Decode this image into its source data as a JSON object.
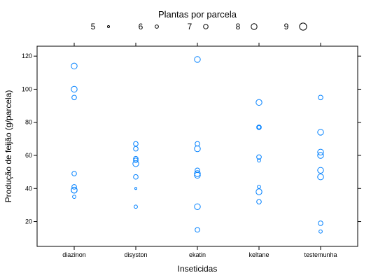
{
  "chart_data": {
    "type": "scatter",
    "legend": {
      "title": "Plantas por parcela",
      "placement": "top",
      "entries": [
        {
          "label": "5",
          "plants": 5
        },
        {
          "label": "6",
          "plants": 6
        },
        {
          "label": "7",
          "plants": 7
        },
        {
          "label": "8",
          "plants": 8
        },
        {
          "label": "9",
          "plants": 9
        }
      ]
    },
    "xlabel": "Inseticidas",
    "ylabel": "Produção de feijão (g/parcela)",
    "categories": [
      "diazinon",
      "disyston",
      "ekatin",
      "keltane",
      "testemunha"
    ],
    "yticks": [
      20,
      40,
      60,
      80,
      100,
      120
    ],
    "ytick_labels": [
      "20",
      "40",
      "60",
      "80",
      "100",
      "120"
    ],
    "ylim": [
      5,
      126
    ],
    "grid": false,
    "marker_color": "#0080ff",
    "points": [
      {
        "x": "diazinon",
        "y": 114,
        "plants": 8
      },
      {
        "x": "diazinon",
        "y": 100,
        "plants": 8
      },
      {
        "x": "diazinon",
        "y": 95,
        "plants": 7
      },
      {
        "x": "diazinon",
        "y": 49,
        "plants": 7
      },
      {
        "x": "diazinon",
        "y": 41,
        "plants": 7
      },
      {
        "x": "diazinon",
        "y": 39,
        "plants": 8
      },
      {
        "x": "diazinon",
        "y": 39,
        "plants": 8
      },
      {
        "x": "diazinon",
        "y": 35,
        "plants": 6
      },
      {
        "x": "disyston",
        "y": 67,
        "plants": 7
      },
      {
        "x": "disyston",
        "y": 64,
        "plants": 7
      },
      {
        "x": "disyston",
        "y": 58,
        "plants": 7
      },
      {
        "x": "disyston",
        "y": 57,
        "plants": 7
      },
      {
        "x": "disyston",
        "y": 55,
        "plants": 8
      },
      {
        "x": "disyston",
        "y": 47,
        "plants": 7
      },
      {
        "x": "disyston",
        "y": 40,
        "plants": 5
      },
      {
        "x": "disyston",
        "y": 29,
        "plants": 6
      },
      {
        "x": "ekatin",
        "y": 118,
        "plants": 8
      },
      {
        "x": "ekatin",
        "y": 67,
        "plants": 7
      },
      {
        "x": "ekatin",
        "y": 64,
        "plants": 8
      },
      {
        "x": "ekatin",
        "y": 51,
        "plants": 7
      },
      {
        "x": "ekatin",
        "y": 49,
        "plants": 8
      },
      {
        "x": "ekatin",
        "y": 48,
        "plants": 8
      },
      {
        "x": "ekatin",
        "y": 29,
        "plants": 8
      },
      {
        "x": "ekatin",
        "y": 15,
        "plants": 7
      },
      {
        "x": "keltane",
        "y": 92,
        "plants": 8
      },
      {
        "x": "keltane",
        "y": 77,
        "plants": 7
      },
      {
        "x": "keltane",
        "y": 77,
        "plants": 6
      },
      {
        "x": "keltane",
        "y": 59,
        "plants": 7
      },
      {
        "x": "keltane",
        "y": 57,
        "plants": 6
      },
      {
        "x": "keltane",
        "y": 41,
        "plants": 6
      },
      {
        "x": "keltane",
        "y": 38,
        "plants": 8
      },
      {
        "x": "keltane",
        "y": 32,
        "plants": 7
      },
      {
        "x": "testemunha",
        "y": 95,
        "plants": 7
      },
      {
        "x": "testemunha",
        "y": 74,
        "plants": 8
      },
      {
        "x": "testemunha",
        "y": 62,
        "plants": 8
      },
      {
        "x": "testemunha",
        "y": 60,
        "plants": 8
      },
      {
        "x": "testemunha",
        "y": 51,
        "plants": 8
      },
      {
        "x": "testemunha",
        "y": 47,
        "plants": 8
      },
      {
        "x": "testemunha",
        "y": 19,
        "plants": 7
      },
      {
        "x": "testemunha",
        "y": 14,
        "plants": 6
      }
    ]
  }
}
